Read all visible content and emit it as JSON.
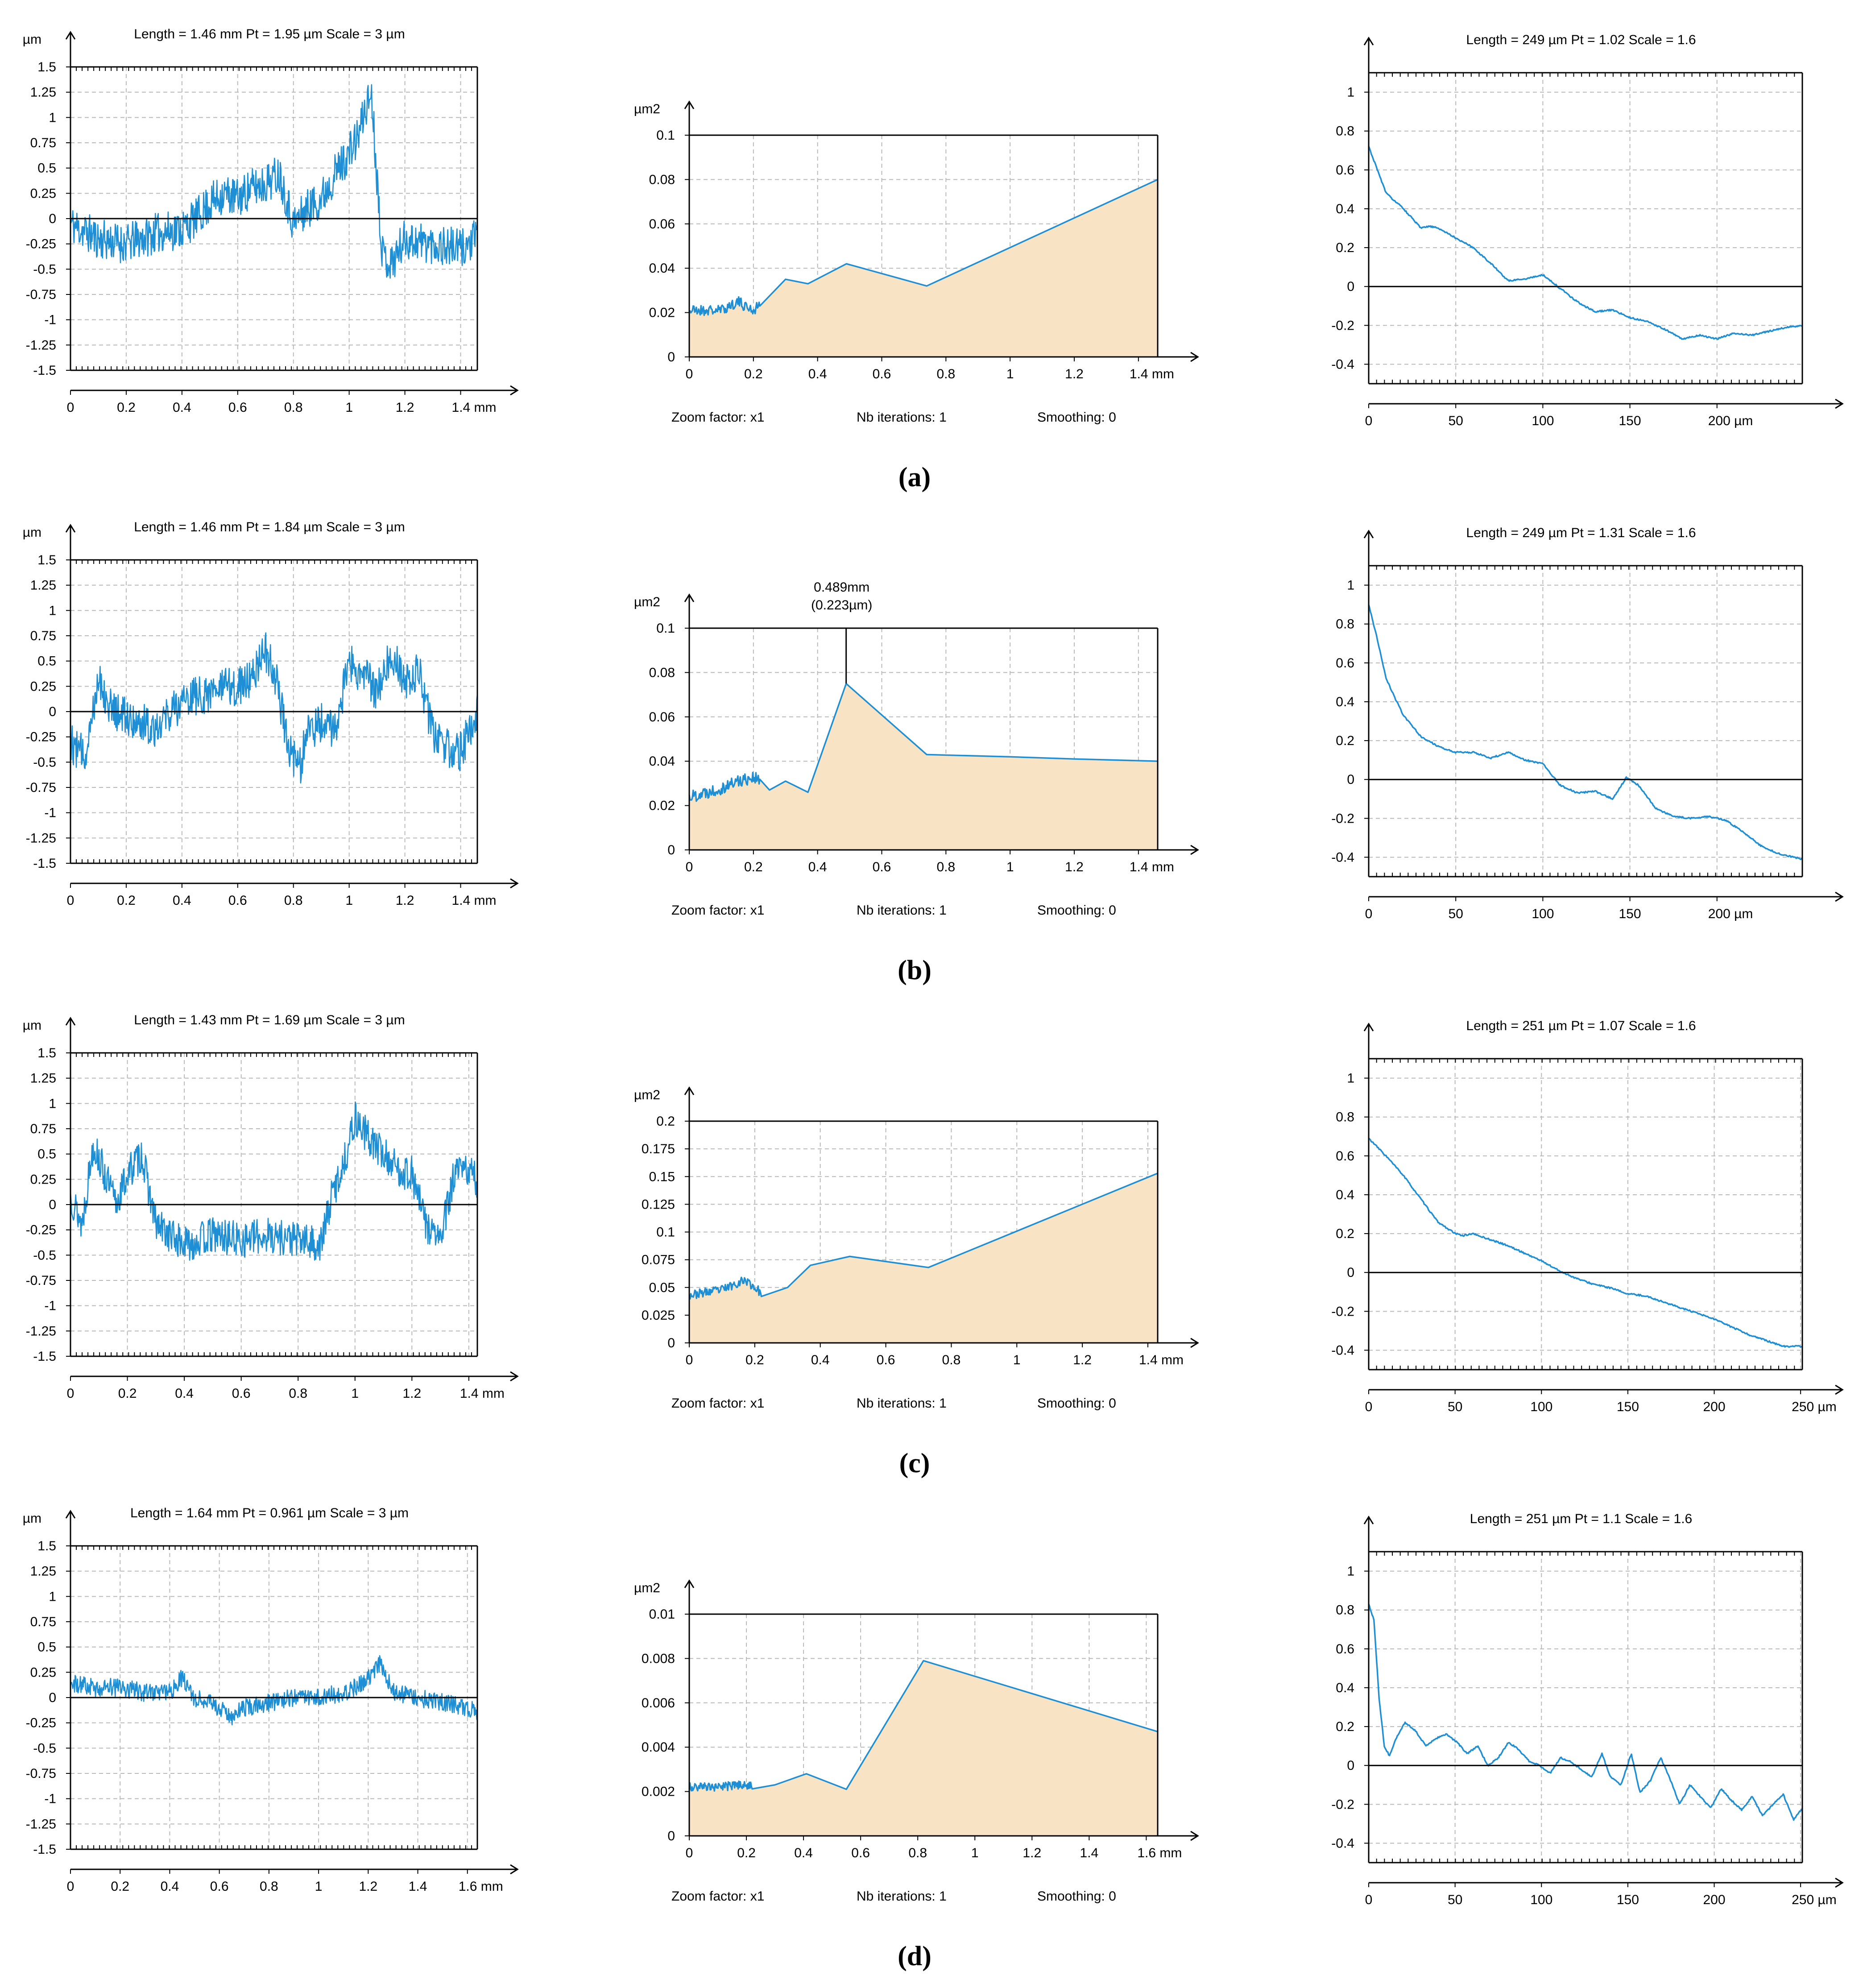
{
  "figure": {
    "captions": [
      "(a)",
      "(b)",
      "(c)",
      "(d)"
    ],
    "colors": {
      "line": "#1e8fd4",
      "fill": "#f8e3c4",
      "axis": "#000000",
      "grid": "#b9b9b9"
    }
  },
  "chart_data": [
    {
      "type": "line",
      "row": "a",
      "kind": "profile",
      "header": "Length = 1.46 mm  Pt = 1.95 µm  Scale = 3 µm",
      "unit_y": "µm",
      "unit_x": "mm",
      "xlim": [
        0,
        1.46
      ],
      "ylim": [
        -1.5,
        1.5
      ],
      "xticks": [
        "0",
        "0.2",
        "0.4",
        "0.6",
        "0.8",
        "1",
        "1.2",
        "1.4 mm"
      ],
      "yticks": [
        "1.5",
        "1.25",
        "1",
        "0.75",
        "0.5",
        "0.25",
        "0",
        "-0.25",
        "-0.5",
        "-0.75",
        "-1",
        "-1.25",
        "-1.5"
      ],
      "x": [
        0,
        0.1,
        0.2,
        0.3,
        0.4,
        0.45,
        0.5,
        0.55,
        0.6,
        0.65,
        0.7,
        0.75,
        0.8,
        0.85,
        0.9,
        0.95,
        1.0,
        1.03,
        1.06,
        1.08,
        1.1,
        1.12,
        1.15,
        1.2,
        1.3,
        1.4,
        1.46
      ],
      "y": [
        -0.05,
        -0.2,
        -0.25,
        -0.15,
        -0.1,
        0.0,
        0.15,
        0.25,
        0.2,
        0.3,
        0.35,
        0.45,
        -0.05,
        0.1,
        0.2,
        0.45,
        0.65,
        0.8,
        1.1,
        1.25,
        0.4,
        -0.35,
        -0.45,
        -0.2,
        -0.25,
        -0.3,
        -0.2
      ],
      "noise": 0.2,
      "seed": 11
    },
    {
      "type": "area",
      "row": "a",
      "kind": "power",
      "unit_y": "µm2",
      "unit_x": "mm",
      "xlim": [
        0,
        1.46
      ],
      "ylim": [
        0,
        0.1
      ],
      "xticks": [
        "0",
        "0.2",
        "0.4",
        "0.6",
        "0.8",
        "1",
        "1.2",
        "1.4 mm"
      ],
      "yticks": [
        "0.1",
        "0.08",
        "0.06",
        "0.04",
        "0.02",
        "0"
      ],
      "x": [
        0.0,
        0.1,
        0.15,
        0.2,
        0.3,
        0.37,
        0.49,
        0.74,
        1.46
      ],
      "y": [
        0.021,
        0.021,
        0.025,
        0.021,
        0.035,
        0.033,
        0.042,
        0.032,
        0.08
      ],
      "noise": 0.0025,
      "noise_end": 0.22,
      "seed": 21,
      "footer": [
        "Zoom factor: x1",
        "Nb iterations: 1",
        "Smoothing: 0"
      ]
    },
    {
      "type": "line",
      "row": "a",
      "kind": "autocorr",
      "header": "Length = 249 µm  Pt = 1.02    Scale = 1.6",
      "unit_x": "µm",
      "xlim": [
        0,
        249
      ],
      "ylim": [
        -0.5,
        1.1
      ],
      "xticks": [
        "0",
        "50",
        "100",
        "150",
        "200 µm"
      ],
      "yticks": [
        "1",
        "0.8",
        "0.6",
        "0.4",
        "0.2",
        "0",
        "-0.2",
        "-0.4"
      ],
      "x": [
        0,
        5,
        10,
        20,
        30,
        35,
        40,
        50,
        60,
        70,
        80,
        90,
        100,
        110,
        120,
        130,
        140,
        150,
        160,
        170,
        180,
        190,
        200,
        210,
        220,
        230,
        240,
        249
      ],
      "y": [
        0.72,
        0.6,
        0.48,
        0.4,
        0.3,
        0.31,
        0.3,
        0.25,
        0.2,
        0.12,
        0.03,
        0.04,
        0.06,
        -0.01,
        -0.08,
        -0.13,
        -0.12,
        -0.16,
        -0.18,
        -0.22,
        -0.27,
        -0.25,
        -0.27,
        -0.24,
        -0.25,
        -0.23,
        -0.21,
        -0.2
      ],
      "noise": 0.004,
      "seed": 31
    },
    {
      "type": "line",
      "row": "b",
      "kind": "profile",
      "header": "Length = 1.46 mm  Pt = 1.84 µm  Scale = 3 µm",
      "unit_y": "µm",
      "unit_x": "mm",
      "xlim": [
        0,
        1.46
      ],
      "ylim": [
        -1.5,
        1.5
      ],
      "xticks": [
        "0",
        "0.2",
        "0.4",
        "0.6",
        "0.8",
        "1",
        "1.2",
        "1.4 mm"
      ],
      "yticks": [
        "1.5",
        "1.25",
        "1",
        "0.75",
        "0.5",
        "0.25",
        "0",
        "-0.25",
        "-0.5",
        "-0.75",
        "-1",
        "-1.25",
        "-1.5"
      ],
      "x": [
        0,
        0.05,
        0.1,
        0.15,
        0.2,
        0.3,
        0.4,
        0.5,
        0.6,
        0.65,
        0.7,
        0.74,
        0.78,
        0.82,
        0.85,
        0.9,
        0.95,
        1.0,
        1.05,
        1.1,
        1.15,
        1.2,
        1.25,
        1.3,
        1.35,
        1.4,
        1.46
      ],
      "y": [
        -0.3,
        -0.45,
        0.35,
        0.0,
        -0.05,
        -0.15,
        0.1,
        0.2,
        0.25,
        0.35,
        0.6,
        0.3,
        -0.3,
        -0.6,
        -0.2,
        -0.1,
        -0.2,
        0.5,
        0.35,
        0.2,
        0.6,
        0.3,
        0.4,
        -0.2,
        -0.35,
        -0.4,
        0.0
      ],
      "noise": 0.2,
      "seed": 12
    },
    {
      "type": "area",
      "row": "b",
      "kind": "power",
      "unit_y": "µm2",
      "unit_x": "mm",
      "xlim": [
        0,
        1.46
      ],
      "ylim": [
        0,
        0.1
      ],
      "xticks": [
        "0",
        "0.2",
        "0.4",
        "0.6",
        "0.8",
        "1",
        "1.2",
        "1.4 mm"
      ],
      "yticks": [
        "0.1",
        "0.08",
        "0.06",
        "0.04",
        "0.02",
        "0"
      ],
      "x": [
        0.0,
        0.1,
        0.15,
        0.2,
        0.25,
        0.3,
        0.37,
        0.489,
        0.74,
        1.0,
        1.2,
        1.46
      ],
      "y": [
        0.024,
        0.028,
        0.031,
        0.033,
        0.027,
        0.031,
        0.026,
        0.075,
        0.043,
        0.042,
        0.041,
        0.04
      ],
      "noise": 0.003,
      "noise_end": 0.22,
      "seed": 22,
      "annotation": {
        "x": 0.489,
        "y": 0.075,
        "label_1": "0.489mm",
        "label_2": "(0.223µm)"
      },
      "footer": [
        "Zoom factor: x1",
        "Nb iterations: 1",
        "Smoothing: 0"
      ]
    },
    {
      "type": "line",
      "row": "b",
      "kind": "autocorr",
      "header": "Length = 249 µm  Pt = 1.31    Scale = 1.6",
      "unit_x": "µm",
      "xlim": [
        0,
        249
      ],
      "ylim": [
        -0.5,
        1.1
      ],
      "xticks": [
        "0",
        "50",
        "100",
        "150",
        "200 µm"
      ],
      "yticks": [
        "1",
        "0.8",
        "0.6",
        "0.4",
        "0.2",
        "0",
        "-0.2",
        "-0.4"
      ],
      "x": [
        0,
        5,
        10,
        15,
        20,
        30,
        40,
        50,
        60,
        70,
        80,
        90,
        100,
        110,
        120,
        130,
        140,
        148,
        155,
        165,
        175,
        185,
        195,
        205,
        215,
        225,
        235,
        249
      ],
      "y": [
        0.9,
        0.72,
        0.52,
        0.42,
        0.33,
        0.22,
        0.17,
        0.14,
        0.14,
        0.11,
        0.14,
        0.1,
        0.08,
        -0.03,
        -0.07,
        -0.06,
        -0.1,
        0.01,
        -0.03,
        -0.15,
        -0.19,
        -0.2,
        -0.19,
        -0.21,
        -0.27,
        -0.34,
        -0.38,
        -0.41
      ],
      "noise": 0.004,
      "seed": 32
    },
    {
      "type": "line",
      "row": "c",
      "kind": "profile",
      "header": "Length = 1.43 mm  Pt = 1.69 µm  Scale = 3 µm",
      "unit_y": "µm",
      "unit_x": "mm",
      "xlim": [
        0,
        1.43
      ],
      "ylim": [
        -1.5,
        1.5
      ],
      "xticks": [
        "0",
        "0.2",
        "0.4",
        "0.6",
        "0.8",
        "1",
        "1.2",
        "1.4 mm"
      ],
      "yticks": [
        "1.5",
        "1.25",
        "1",
        "0.75",
        "0.5",
        "0.25",
        "0",
        "-0.25",
        "-0.5",
        "-0.75",
        "-1",
        "-1.25",
        "-1.5"
      ],
      "x": [
        0,
        0.04,
        0.08,
        0.12,
        0.16,
        0.2,
        0.25,
        0.3,
        0.35,
        0.4,
        0.5,
        0.6,
        0.7,
        0.8,
        0.88,
        0.92,
        0.96,
        1.0,
        1.05,
        1.1,
        1.15,
        1.2,
        1.25,
        1.3,
        1.35,
        1.4,
        1.43
      ],
      "y": [
        0.1,
        -0.2,
        0.6,
        0.3,
        0.0,
        0.3,
        0.5,
        -0.2,
        -0.3,
        -0.4,
        -0.3,
        -0.35,
        -0.3,
        -0.35,
        -0.4,
        0.1,
        0.4,
        0.85,
        0.65,
        0.5,
        0.35,
        0.3,
        -0.2,
        -0.35,
        0.3,
        0.35,
        0.2
      ],
      "noise": 0.18,
      "seed": 13
    },
    {
      "type": "area",
      "row": "c",
      "kind": "power",
      "unit_y": "µm2",
      "unit_x": "mm",
      "xlim": [
        0,
        1.43
      ],
      "ylim": [
        0,
        0.2
      ],
      "xticks": [
        "0",
        "0.2",
        "0.4",
        "0.6",
        "0.8",
        "1",
        "1.2",
        "1.4 mm"
      ],
      "yticks": [
        "0.2",
        "0.175",
        "0.15",
        "0.125",
        "0.1",
        "0.075",
        "0.05",
        "0.025",
        "0"
      ],
      "x": [
        0.0,
        0.1,
        0.17,
        0.22,
        0.3,
        0.37,
        0.49,
        0.73,
        1.43
      ],
      "y": [
        0.043,
        0.048,
        0.057,
        0.045,
        0.05,
        0.07,
        0.078,
        0.068,
        0.153
      ],
      "noise": 0.004,
      "noise_end": 0.22,
      "seed": 23,
      "footer": [
        "Zoom factor: x1",
        "Nb iterations: 1",
        "Smoothing: 0"
      ]
    },
    {
      "type": "line",
      "row": "c",
      "kind": "autocorr",
      "header": "Length = 251 µm  Pt = 1.07    Scale = 1.6",
      "unit_x": "µm",
      "xlim": [
        0,
        251
      ],
      "ylim": [
        -0.5,
        1.1
      ],
      "xticks": [
        "0",
        "50",
        "100",
        "150",
        "200",
        "250 µm"
      ],
      "yticks": [
        "1",
        "0.8",
        "0.6",
        "0.4",
        "0.2",
        "0",
        "-0.2",
        "-0.4"
      ],
      "x": [
        0,
        10,
        20,
        30,
        40,
        50,
        55,
        60,
        70,
        80,
        90,
        100,
        110,
        120,
        130,
        140,
        150,
        160,
        170,
        180,
        190,
        200,
        210,
        220,
        230,
        240,
        250
      ],
      "y": [
        0.69,
        0.6,
        0.5,
        0.38,
        0.26,
        0.2,
        0.19,
        0.2,
        0.17,
        0.14,
        0.1,
        0.06,
        0.01,
        -0.03,
        -0.06,
        -0.08,
        -0.11,
        -0.12,
        -0.15,
        -0.18,
        -0.21,
        -0.24,
        -0.28,
        -0.32,
        -0.35,
        -0.38,
        -0.38
      ],
      "noise": 0.004,
      "seed": 33
    },
    {
      "type": "line",
      "row": "d",
      "kind": "profile",
      "header": "Length = 1.64 mm  Pt = 0.961 µm  Scale = 3 µm",
      "unit_y": "µm",
      "unit_x": "mm",
      "xlim": [
        0,
        1.64
      ],
      "ylim": [
        -1.5,
        1.5
      ],
      "xticks": [
        "0",
        "0.2",
        "0.4",
        "0.6",
        "0.8",
        "1",
        "1.2",
        "1.4",
        "1.6 mm"
      ],
      "yticks": [
        "1.5",
        "1.25",
        "1",
        "0.75",
        "0.5",
        "0.25",
        "0",
        "-0.25",
        "-0.5",
        "-0.75",
        "-1",
        "-1.25",
        "-1.5"
      ],
      "x": [
        0,
        0.1,
        0.2,
        0.3,
        0.4,
        0.45,
        0.5,
        0.6,
        0.65,
        0.7,
        0.8,
        0.9,
        1.0,
        1.1,
        1.15,
        1.2,
        1.25,
        1.3,
        1.4,
        1.5,
        1.6,
        1.64
      ],
      "y": [
        0.15,
        0.1,
        0.1,
        0.05,
        0.05,
        0.2,
        0.0,
        -0.1,
        -0.2,
        -0.1,
        -0.05,
        0.0,
        0.0,
        0.05,
        0.1,
        0.2,
        0.35,
        0.05,
        0.0,
        -0.05,
        -0.1,
        -0.15
      ],
      "noise": 0.09,
      "seed": 14
    },
    {
      "type": "area",
      "row": "d",
      "kind": "power",
      "unit_y": "µm2",
      "unit_x": "mm",
      "xlim": [
        0,
        1.64
      ],
      "ylim": [
        0,
        0.01
      ],
      "xticks": [
        "0",
        "0.2",
        "0.4",
        "0.6",
        "0.8",
        "1",
        "1.2",
        "1.4",
        "1.6 mm"
      ],
      "yticks": [
        "0.01",
        "0.008",
        "0.006",
        "0.004",
        "0.002",
        "0"
      ],
      "x": [
        0.0,
        0.1,
        0.2,
        0.3,
        0.41,
        0.55,
        0.82,
        1.64
      ],
      "y": [
        0.0022,
        0.0022,
        0.0023,
        0.0023,
        0.0028,
        0.0021,
        0.0079,
        0.0047
      ],
      "noise": 0.0002,
      "noise_end": 0.22,
      "seed": 24,
      "footer": [
        "Zoom factor: x1",
        "Nb iterations: 1",
        "Smoothing: 0"
      ]
    },
    {
      "type": "line",
      "row": "d",
      "kind": "autocorr",
      "header": "Length = 251 µm  Pt = 1.1    Scale = 1.6",
      "unit_x": "µm",
      "xlim": [
        0,
        251
      ],
      "ylim": [
        -0.5,
        1.1
      ],
      "xticks": [
        "0",
        "50",
        "100",
        "150",
        "200",
        "250 µm"
      ],
      "yticks": [
        "1",
        "0.8",
        "0.6",
        "0.4",
        "0.2",
        "0",
        "-0.2",
        "-0.4"
      ],
      "x": [
        0,
        3,
        6,
        9,
        12,
        16,
        21,
        27,
        33,
        39,
        45,
        51,
        57,
        63,
        69,
        75,
        81,
        87,
        93,
        99,
        105,
        111,
        117,
        123,
        129,
        135,
        140,
        146,
        152,
        157,
        163,
        169,
        174,
        180,
        186,
        192,
        198,
        204,
        210,
        216,
        222,
        228,
        234,
        240,
        246,
        251
      ],
      "y": [
        0.83,
        0.75,
        0.35,
        0.1,
        0.05,
        0.14,
        0.22,
        0.18,
        0.1,
        0.14,
        0.16,
        0.12,
        0.06,
        0.1,
        0.0,
        0.04,
        0.12,
        0.08,
        0.02,
        0.0,
        -0.04,
        0.04,
        0.02,
        -0.02,
        -0.06,
        0.06,
        -0.06,
        -0.1,
        0.06,
        -0.14,
        -0.08,
        0.04,
        -0.06,
        -0.2,
        -0.1,
        -0.16,
        -0.22,
        -0.12,
        -0.18,
        -0.23,
        -0.16,
        -0.26,
        -0.2,
        -0.15,
        -0.28,
        -0.22
      ],
      "noise": 0.004,
      "seed": 34
    }
  ]
}
